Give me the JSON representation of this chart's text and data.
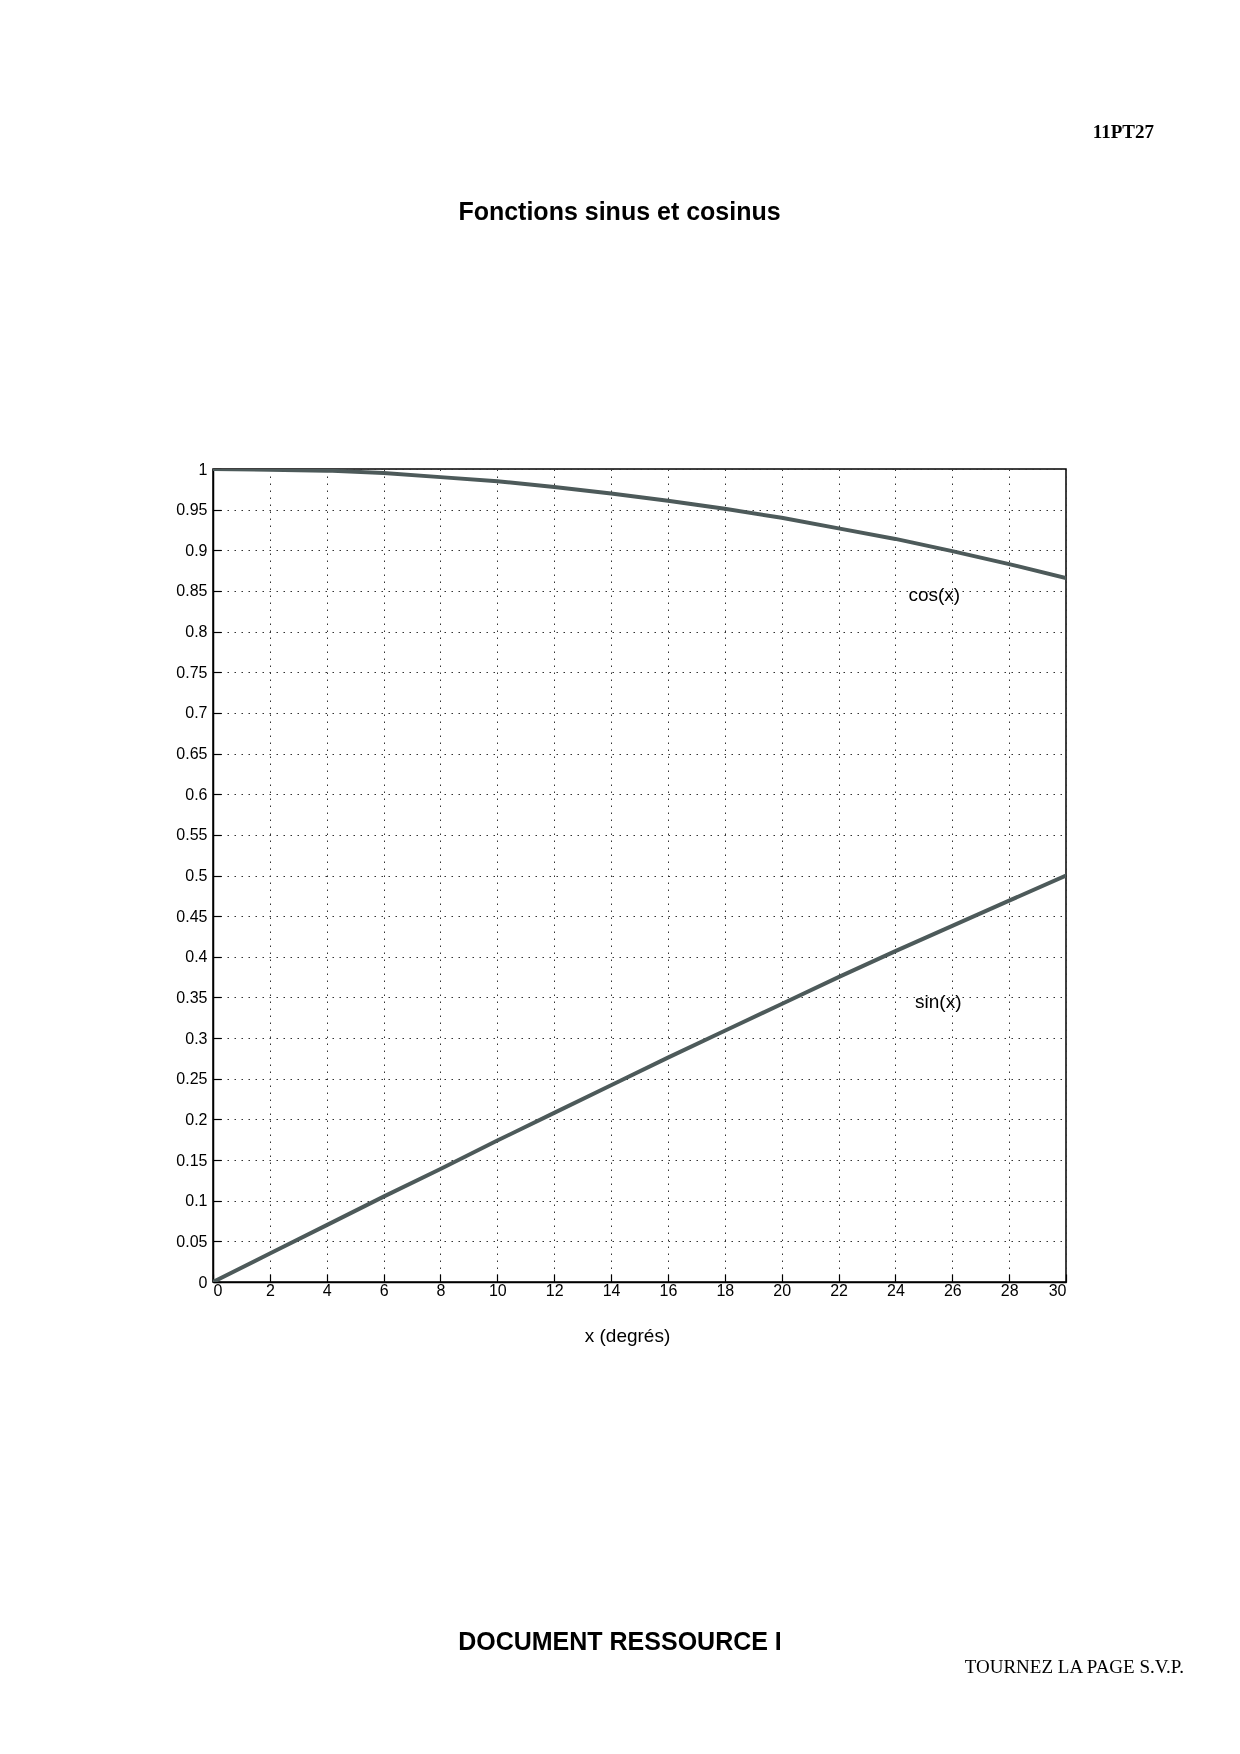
{
  "chart_data": {
    "type": "line",
    "title": "Fonctions sinus et cosinus",
    "xlabel": "x (degrés)",
    "annotations": [
      "11PT27",
      "DOCUMENT RESSOURCE I",
      "TOURNEZ LA PAGE S.V.P."
    ],
    "x": [
      0,
      2,
      4,
      6,
      8,
      10,
      12,
      14,
      16,
      18,
      20,
      22,
      24,
      26,
      28,
      30
    ],
    "series": [
      {
        "name": "cos(x)",
        "color": "#4d5a5a",
        "values": [
          1,
          0.999,
          0.998,
          0.995,
          0.99,
          0.985,
          0.978,
          0.97,
          0.961,
          0.951,
          0.94,
          0.927,
          0.914,
          0.899,
          0.883,
          0.866
        ]
      },
      {
        "name": "sin(x)",
        "color": "#4d5a5a",
        "values": [
          0,
          0.035,
          0.07,
          0.105,
          0.139,
          0.174,
          0.208,
          0.242,
          0.276,
          0.309,
          0.342,
          0.375,
          0.407,
          0.438,
          0.469,
          0.5
        ]
      }
    ],
    "xlim": [
      0,
      30
    ],
    "xticks": [
      0,
      2,
      4,
      6,
      8,
      10,
      12,
      14,
      16,
      18,
      20,
      22,
      24,
      26,
      28,
      30
    ],
    "ylim": [
      0,
      1
    ],
    "yticks": [
      0,
      0.05,
      0.1,
      0.15,
      0.2,
      0.25,
      0.3,
      0.35,
      0.4,
      0.45,
      0.5,
      0.55,
      0.6,
      0.65,
      0.7,
      0.75,
      0.8,
      0.85,
      0.9,
      0.95,
      1
    ],
    "grid": true
  }
}
